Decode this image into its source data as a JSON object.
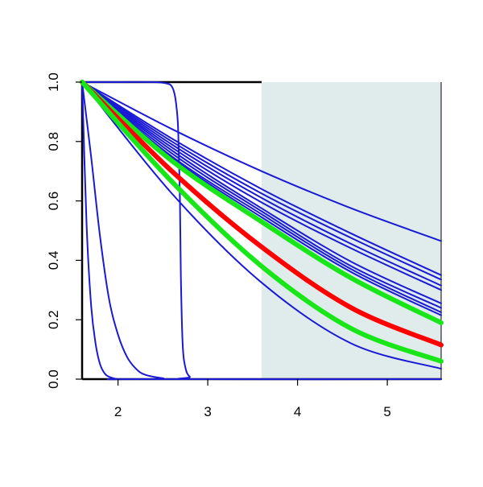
{
  "chart_data": {
    "type": "line",
    "title": "",
    "xlabel": "",
    "ylabel": "",
    "xlim": [
      1.6,
      5.6
    ],
    "ylim": [
      0.0,
      1.0
    ],
    "x_ticks": [
      2,
      3,
      4,
      5
    ],
    "x_tick_labels": [
      "2",
      "3",
      "4",
      "5"
    ],
    "y_ticks": [
      0.0,
      0.2,
      0.4,
      0.6,
      0.8,
      1.0
    ],
    "y_tick_labels": [
      "0.0",
      "0.2",
      "0.4",
      "0.6",
      "0.8",
      "1.0"
    ],
    "grid": false,
    "legend": "none",
    "shaded_region": {
      "x_from": 3.6,
      "x_to": 5.6,
      "color": "#dfeceb"
    },
    "colors": {
      "blue": "#1a1ad6",
      "red": "#ff0000",
      "green": "#19e619",
      "axis": "#000000"
    },
    "series": [
      {
        "color": "blue",
        "width": "thin",
        "x": [
          1.6,
          1.65,
          1.7,
          1.75,
          1.8,
          1.85,
          1.9,
          2.0,
          2.2,
          5.6
        ],
        "y": [
          1.0,
          0.52,
          0.25,
          0.12,
          0.05,
          0.02,
          0.008,
          0.0,
          0.0,
          0.0
        ]
      },
      {
        "color": "blue",
        "width": "thin",
        "x": [
          1.6,
          1.7,
          1.8,
          1.9,
          2.0,
          2.1,
          2.2,
          2.3,
          2.5,
          2.7,
          5.6
        ],
        "y": [
          1.0,
          0.75,
          0.48,
          0.27,
          0.15,
          0.075,
          0.035,
          0.015,
          0.003,
          0.0,
          0.0
        ]
      },
      {
        "color": "blue",
        "width": "thin",
        "x": [
          1.6,
          2.0,
          2.4,
          2.55,
          2.6,
          2.63,
          2.65,
          2.67,
          2.69,
          2.7,
          2.72,
          2.75,
          2.8,
          2.9,
          5.6
        ],
        "y": [
          1.0,
          1.0,
          1.0,
          0.995,
          0.985,
          0.96,
          0.92,
          0.84,
          0.6,
          0.35,
          0.12,
          0.04,
          0.008,
          0.0,
          0.0
        ]
      },
      {
        "color": "blue",
        "width": "thin",
        "x": [
          1.6,
          2.6,
          3.6,
          4.6,
          5.6
        ],
        "y": [
          1.0,
          0.842,
          0.7,
          0.575,
          0.465
        ]
      },
      {
        "color": "blue",
        "width": "thin",
        "x": [
          1.6,
          2.6,
          3.6,
          4.6,
          5.6
        ],
        "y": [
          1.0,
          0.81,
          0.64,
          0.49,
          0.35
        ]
      },
      {
        "color": "blue",
        "width": "thin",
        "x": [
          1.6,
          2.6,
          3.6,
          4.6,
          5.6
        ],
        "y": [
          1.0,
          0.8,
          0.625,
          0.475,
          0.335
        ]
      },
      {
        "color": "blue",
        "width": "thin",
        "x": [
          1.6,
          2.6,
          3.6,
          4.6,
          5.6
        ],
        "y": [
          1.0,
          0.79,
          0.61,
          0.455,
          0.315
        ]
      },
      {
        "color": "blue",
        "width": "thin",
        "x": [
          1.6,
          2.6,
          3.6,
          4.6,
          5.6
        ],
        "y": [
          1.0,
          0.78,
          0.595,
          0.44,
          0.3
        ]
      },
      {
        "color": "blue",
        "width": "thin",
        "x": [
          1.6,
          2.6,
          3.6,
          4.6,
          5.6
        ],
        "y": [
          1.0,
          0.77,
          0.575,
          0.395,
          0.255
        ]
      },
      {
        "color": "blue",
        "width": "thin",
        "x": [
          1.6,
          2.6,
          3.6,
          4.6,
          5.6
        ],
        "y": [
          1.0,
          0.76,
          0.565,
          0.38,
          0.24
        ]
      },
      {
        "color": "blue",
        "width": "thin",
        "x": [
          1.6,
          2.6,
          3.6,
          4.6,
          5.6
        ],
        "y": [
          1.0,
          0.75,
          0.555,
          0.37,
          0.225
        ]
      },
      {
        "color": "blue",
        "width": "thin",
        "x": [
          1.6,
          2.6,
          3.6,
          4.6,
          5.6
        ],
        "y": [
          1.0,
          0.745,
          0.545,
          0.36,
          0.215
        ]
      },
      {
        "color": "green",
        "width": "thick",
        "x": [
          1.6,
          2.6,
          3.6,
          4.6,
          5.6
        ],
        "y": [
          1.0,
          0.735,
          0.53,
          0.34,
          0.19
        ]
      },
      {
        "color": "red",
        "width": "thick",
        "x": [
          1.6,
          2.6,
          3.6,
          4.6,
          5.6
        ],
        "y": [
          1.0,
          0.7,
          0.445,
          0.24,
          0.115
        ]
      },
      {
        "color": "green",
        "width": "thick",
        "x": [
          1.6,
          2.6,
          3.6,
          4.6,
          5.6
        ],
        "y": [
          1.0,
          0.665,
          0.38,
          0.17,
          0.06
        ]
      },
      {
        "color": "blue",
        "width": "thin",
        "x": [
          1.6,
          2.6,
          3.6,
          4.6,
          5.6
        ],
        "y": [
          1.0,
          0.625,
          0.325,
          0.12,
          0.035
        ]
      }
    ]
  }
}
